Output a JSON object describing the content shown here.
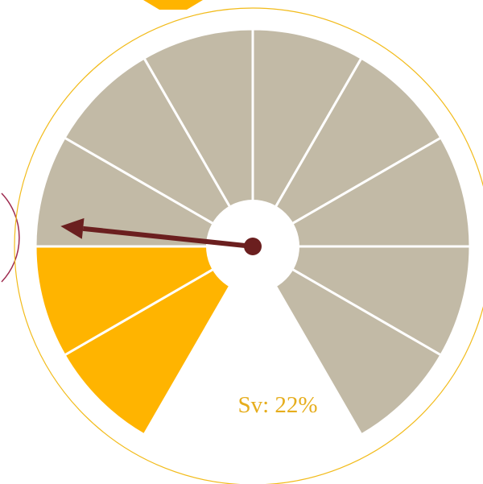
{
  "chart_data": {
    "type": "gauge",
    "label": "Sv: 22%",
    "value": 22,
    "ylim": [
      0,
      100
    ],
    "segments": 10,
    "fill_color": "#ffb400",
    "empty_color": "#c2baa6",
    "needle_color": "#6b1f1f",
    "ring_color": "#f2bb1a",
    "label_color": "#e6ad1c"
  }
}
